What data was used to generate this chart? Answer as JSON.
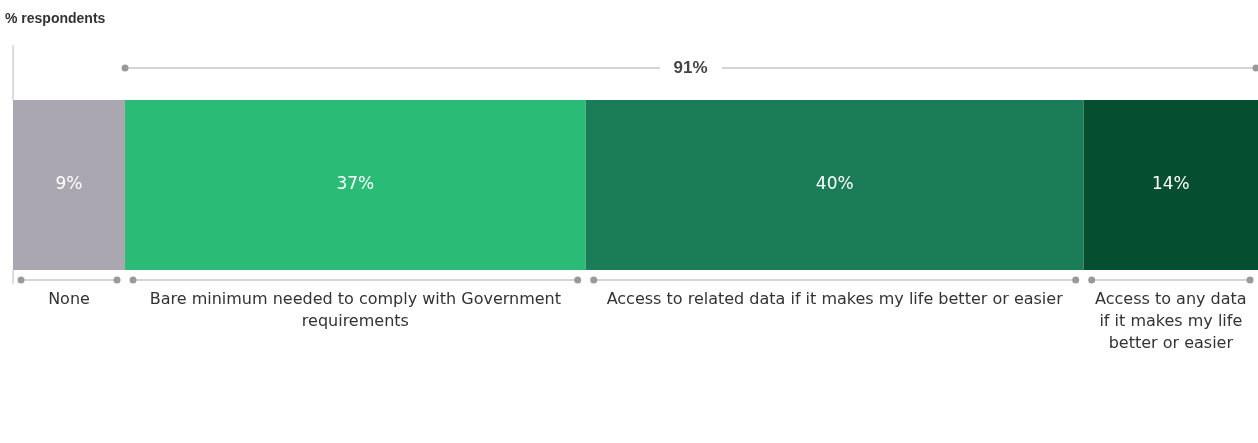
{
  "chart_data": {
    "type": "bar",
    "title": "% respondents",
    "orientation": "horizontal",
    "stacked": true,
    "categories": [
      null
    ],
    "tick_labels": false,
    "legend": false,
    "series": [
      {
        "name": "None",
        "color": "#aba7b1",
        "values": [
          9
        ],
        "value_labels": [
          "9%"
        ]
      },
      {
        "name": "Bare minimum needed to comply with Government requirements",
        "color": "#2abb76",
        "values": [
          37
        ],
        "value_labels": [
          "37%"
        ]
      },
      {
        "name": "Access to related data if it makes my life better or easier",
        "color": "#1b7d57",
        "values": [
          40
        ],
        "value_labels": [
          "40%"
        ]
      },
      {
        "name": "Access to any data if it makes my life better or easier",
        "color": "#054e2f",
        "values": [
          14
        ],
        "value_labels": [
          "14%"
        ]
      }
    ],
    "annotations": [
      "91%"
    ]
  }
}
